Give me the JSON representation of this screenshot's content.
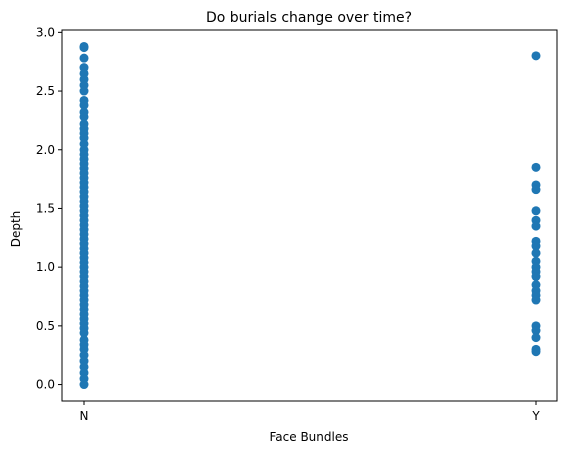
{
  "chart_data": {
    "type": "scatter",
    "title": "Do burials change over time?",
    "xlabel": "Face Bundles",
    "ylabel": "Depth",
    "categories": [
      "N",
      "Y"
    ],
    "ylim": [
      -0.14,
      3.02
    ],
    "yticks": [
      "0.0",
      "0.5",
      "1.0",
      "1.5",
      "2.0",
      "2.5",
      "3.0"
    ],
    "grid": false,
    "marker_color": "#1f77b4",
    "series": [
      {
        "points": [
          {
            "x": "N",
            "y": 2.88
          },
          {
            "x": "N",
            "y": 2.87
          },
          {
            "x": "N",
            "y": 2.78
          },
          {
            "x": "N",
            "y": 2.7
          },
          {
            "x": "N",
            "y": 2.65
          },
          {
            "x": "N",
            "y": 2.6
          },
          {
            "x": "N",
            "y": 2.55
          },
          {
            "x": "N",
            "y": 2.5
          },
          {
            "x": "N",
            "y": 2.42
          },
          {
            "x": "N",
            "y": 2.38
          },
          {
            "x": "N",
            "y": 2.32
          },
          {
            "x": "N",
            "y": 2.28
          },
          {
            "x": "N",
            "y": 2.22
          },
          {
            "x": "N",
            "y": 2.18
          },
          {
            "x": "N",
            "y": 2.14
          },
          {
            "x": "N",
            "y": 2.1
          },
          {
            "x": "N",
            "y": 2.05
          },
          {
            "x": "N",
            "y": 2.0
          },
          {
            "x": "N",
            "y": 1.96
          },
          {
            "x": "N",
            "y": 1.92
          },
          {
            "x": "N",
            "y": 1.88
          },
          {
            "x": "N",
            "y": 1.84
          },
          {
            "x": "N",
            "y": 1.8
          },
          {
            "x": "N",
            "y": 1.76
          },
          {
            "x": "N",
            "y": 1.72
          },
          {
            "x": "N",
            "y": 1.68
          },
          {
            "x": "N",
            "y": 1.64
          },
          {
            "x": "N",
            "y": 1.6
          },
          {
            "x": "N",
            "y": 1.56
          },
          {
            "x": "N",
            "y": 1.52
          },
          {
            "x": "N",
            "y": 1.48
          },
          {
            "x": "N",
            "y": 1.44
          },
          {
            "x": "N",
            "y": 1.4
          },
          {
            "x": "N",
            "y": 1.36
          },
          {
            "x": "N",
            "y": 1.32
          },
          {
            "x": "N",
            "y": 1.28
          },
          {
            "x": "N",
            "y": 1.24
          },
          {
            "x": "N",
            "y": 1.2
          },
          {
            "x": "N",
            "y": 1.16
          },
          {
            "x": "N",
            "y": 1.12
          },
          {
            "x": "N",
            "y": 1.08
          },
          {
            "x": "N",
            "y": 1.04
          },
          {
            "x": "N",
            "y": 1.0
          },
          {
            "x": "N",
            "y": 0.96
          },
          {
            "x": "N",
            "y": 0.92
          },
          {
            "x": "N",
            "y": 0.88
          },
          {
            "x": "N",
            "y": 0.84
          },
          {
            "x": "N",
            "y": 0.8
          },
          {
            "x": "N",
            "y": 0.76
          },
          {
            "x": "N",
            "y": 0.72
          },
          {
            "x": "N",
            "y": 0.68
          },
          {
            "x": "N",
            "y": 0.64
          },
          {
            "x": "N",
            "y": 0.6
          },
          {
            "x": "N",
            "y": 0.56
          },
          {
            "x": "N",
            "y": 0.52
          },
          {
            "x": "N",
            "y": 0.48
          },
          {
            "x": "N",
            "y": 0.44
          },
          {
            "x": "N",
            "y": 0.38
          },
          {
            "x": "N",
            "y": 0.34
          },
          {
            "x": "N",
            "y": 0.3
          },
          {
            "x": "N",
            "y": 0.25
          },
          {
            "x": "N",
            "y": 0.2
          },
          {
            "x": "N",
            "y": 0.15
          },
          {
            "x": "N",
            "y": 0.1
          },
          {
            "x": "N",
            "y": 0.05
          },
          {
            "x": "N",
            "y": 0.0
          },
          {
            "x": "Y",
            "y": 2.8
          },
          {
            "x": "Y",
            "y": 1.85
          },
          {
            "x": "Y",
            "y": 1.7
          },
          {
            "x": "Y",
            "y": 1.66
          },
          {
            "x": "Y",
            "y": 1.48
          },
          {
            "x": "Y",
            "y": 1.4
          },
          {
            "x": "Y",
            "y": 1.35
          },
          {
            "x": "Y",
            "y": 1.22
          },
          {
            "x": "Y",
            "y": 1.18
          },
          {
            "x": "Y",
            "y": 1.12
          },
          {
            "x": "Y",
            "y": 1.05
          },
          {
            "x": "Y",
            "y": 1.0
          },
          {
            "x": "Y",
            "y": 0.96
          },
          {
            "x": "Y",
            "y": 0.92
          },
          {
            "x": "Y",
            "y": 0.85
          },
          {
            "x": "Y",
            "y": 0.8
          },
          {
            "x": "Y",
            "y": 0.76
          },
          {
            "x": "Y",
            "y": 0.72
          },
          {
            "x": "Y",
            "y": 0.5
          },
          {
            "x": "Y",
            "y": 0.46
          },
          {
            "x": "Y",
            "y": 0.4
          },
          {
            "x": "Y",
            "y": 0.3
          },
          {
            "x": "Y",
            "y": 0.28
          }
        ]
      }
    ]
  }
}
